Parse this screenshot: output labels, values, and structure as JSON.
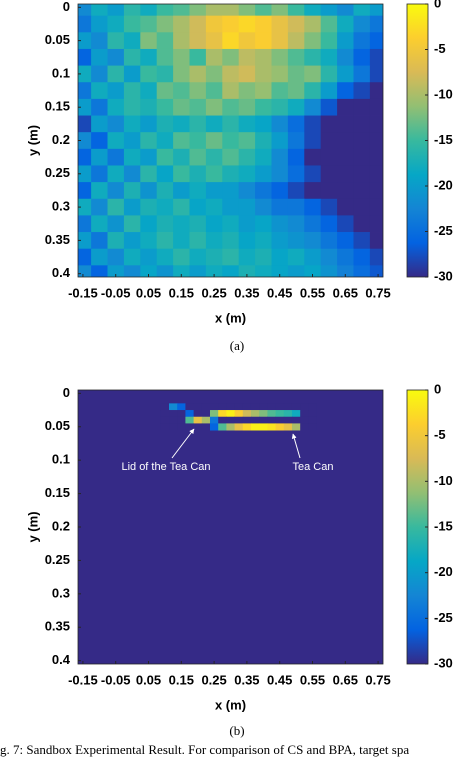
{
  "chart_data": [
    {
      "type": "heatmap",
      "caption": "(a)",
      "xlabel": "x (m)",
      "ylabel": "y (m)",
      "xlim": [
        -0.165,
        0.765
      ],
      "ylim": [
        -0.005,
        0.405
      ],
      "y_reversed": true,
      "xticks": [
        -0.15,
        -0.05,
        0.05,
        0.15,
        0.25,
        0.35,
        0.45,
        0.55,
        0.65,
        0.75
      ],
      "yticks": [
        0,
        0.05,
        0.1,
        0.15,
        0.2,
        0.25,
        0.3,
        0.35,
        0.4
      ],
      "clim": [
        -30,
        0
      ],
      "cticks": [
        0,
        -5,
        -10,
        -15,
        -20,
        -25,
        -30
      ],
      "colormap": [
        "#352a87",
        "#0363e1",
        "#1485d4",
        "#06a7c6",
        "#38b99e",
        "#92bf73",
        "#d9ba56",
        "#fcce2e",
        "#f9fb0e"
      ],
      "x": [
        -0.15,
        -0.1,
        -0.05,
        0,
        0.05,
        0.1,
        0.15,
        0.2,
        0.25,
        0.3,
        0.35,
        0.4,
        0.45,
        0.5,
        0.55,
        0.6,
        0.65,
        0.7,
        0.75
      ],
      "y": [
        0,
        0.025,
        0.05,
        0.075,
        0.1,
        0.125,
        0.15,
        0.175,
        0.2,
        0.225,
        0.25,
        0.275,
        0.3,
        0.325,
        0.35,
        0.375,
        0.4
      ],
      "values": [
        [
          -22,
          -18,
          -20,
          -16,
          -18,
          -15,
          -14,
          -12,
          -10,
          -10,
          -12,
          -14,
          -12,
          -15,
          -18,
          -20,
          -22,
          -18,
          -20
        ],
        [
          -24,
          -20,
          -18,
          -15,
          -14,
          -12,
          -10,
          -8,
          -5,
          -4,
          -3,
          -4,
          -6,
          -8,
          -10,
          -14,
          -18,
          -22,
          -24
        ],
        [
          -20,
          -22,
          -16,
          -18,
          -12,
          -14,
          -10,
          -8,
          -6,
          -3,
          -5,
          -4,
          -6,
          -9,
          -12,
          -15,
          -20,
          -24,
          -26
        ],
        [
          -26,
          -20,
          -22,
          -16,
          -18,
          -14,
          -12,
          -15,
          -10,
          -12,
          -9,
          -10,
          -12,
          -14,
          -16,
          -18,
          -22,
          -26,
          -28
        ],
        [
          -18,
          -22,
          -16,
          -20,
          -15,
          -16,
          -12,
          -10,
          -12,
          -9,
          -8,
          -10,
          -11,
          -13,
          -12,
          -16,
          -20,
          -24,
          -28
        ],
        [
          -24,
          -18,
          -20,
          -16,
          -18,
          -13,
          -14,
          -12,
          -14,
          -10,
          -12,
          -11,
          -14,
          -13,
          -16,
          -20,
          -26,
          -28,
          -30
        ],
        [
          -20,
          -24,
          -18,
          -16,
          -17,
          -15,
          -13,
          -14,
          -12,
          -14,
          -13,
          -15,
          -16,
          -18,
          -22,
          -27,
          -30,
          -30,
          -30
        ],
        [
          -28,
          -20,
          -22,
          -18,
          -20,
          -17,
          -18,
          -16,
          -18,
          -16,
          -18,
          -19,
          -22,
          -25,
          -28,
          -30,
          -30,
          -30,
          -30
        ],
        [
          -22,
          -26,
          -18,
          -20,
          -16,
          -18,
          -14,
          -15,
          -13,
          -15,
          -14,
          -17,
          -20,
          -24,
          -28,
          -30,
          -30,
          -30,
          -30
        ],
        [
          -26,
          -20,
          -24,
          -18,
          -20,
          -15,
          -17,
          -14,
          -16,
          -14,
          -16,
          -18,
          -22,
          -26,
          -30,
          -30,
          -30,
          -30,
          -30
        ],
        [
          -20,
          -24,
          -18,
          -22,
          -16,
          -19,
          -15,
          -17,
          -15,
          -17,
          -18,
          -20,
          -22,
          -25,
          -28,
          -30,
          -30,
          -30,
          -30
        ],
        [
          -26,
          -18,
          -22,
          -17,
          -21,
          -17,
          -20,
          -18,
          -20,
          -20,
          -22,
          -24,
          -26,
          -28,
          -30,
          -30,
          -30,
          -30,
          -30
        ],
        [
          -18,
          -22,
          -16,
          -20,
          -17,
          -18,
          -16,
          -19,
          -18,
          -20,
          -20,
          -22,
          -24,
          -24,
          -26,
          -28,
          -30,
          -30,
          -30
        ],
        [
          -24,
          -18,
          -21,
          -16,
          -19,
          -17,
          -18,
          -17,
          -19,
          -18,
          -20,
          -19,
          -21,
          -22,
          -24,
          -26,
          -28,
          -30,
          -30
        ],
        [
          -20,
          -24,
          -17,
          -20,
          -18,
          -16,
          -18,
          -16,
          -18,
          -17,
          -19,
          -18,
          -20,
          -21,
          -22,
          -24,
          -26,
          -28,
          -30
        ],
        [
          -26,
          -20,
          -22,
          -18,
          -20,
          -18,
          -16,
          -18,
          -17,
          -16,
          -18,
          -17,
          -19,
          -18,
          -20,
          -22,
          -24,
          -26,
          -28
        ],
        [
          -22,
          -26,
          -20,
          -22,
          -19,
          -21,
          -18,
          -20,
          -18,
          -19,
          -17,
          -18,
          -19,
          -20,
          -19,
          -21,
          -23,
          -25,
          -27
        ]
      ]
    },
    {
      "type": "heatmap",
      "caption": "(b)",
      "xlabel": "x (m)",
      "ylabel": "y (m)",
      "xlim": [
        -0.165,
        0.765
      ],
      "ylim": [
        -0.005,
        0.405
      ],
      "y_reversed": true,
      "xticks": [
        -0.15,
        -0.05,
        0.05,
        0.15,
        0.25,
        0.35,
        0.45,
        0.55,
        0.65,
        0.75
      ],
      "yticks": [
        0,
        0.05,
        0.1,
        0.15,
        0.2,
        0.25,
        0.3,
        0.35,
        0.4
      ],
      "clim": [
        -30,
        0
      ],
      "cticks": [
        0,
        -5,
        -10,
        -15,
        -20,
        -25,
        -30
      ],
      "colormap": [
        "#352a87",
        "#0363e1",
        "#1485d4",
        "#06a7c6",
        "#38b99e",
        "#92bf73",
        "#d9ba56",
        "#fcce2e",
        "#f9fb0e"
      ],
      "background": -30,
      "x": [
        0.1,
        0.125,
        0.15,
        0.175,
        0.2,
        0.225,
        0.25,
        0.275,
        0.3,
        0.325,
        0.35,
        0.375,
        0.4,
        0.425,
        0.45,
        0.475,
        0.5,
        0.525,
        0.55
      ],
      "y": [
        0.02,
        0.03,
        0.04,
        0.05
      ],
      "values": [
        [
          -30,
          -22,
          -26,
          -30,
          -30,
          -30,
          -30,
          -30,
          -30,
          -30,
          -30,
          -30,
          -30,
          -30,
          -30,
          -30,
          -30,
          -30,
          -30
        ],
        [
          -30,
          -30,
          -30,
          -26,
          -30,
          -30,
          -12,
          -3,
          -1,
          -4,
          -8,
          -10,
          -12,
          -14,
          -15,
          -16,
          -18,
          -30,
          -30
        ],
        [
          -30,
          -30,
          -30,
          -14,
          -6,
          -10,
          -24,
          -30,
          -30,
          -30,
          -30,
          -30,
          -30,
          -30,
          -30,
          -30,
          -30,
          -30,
          -30
        ],
        [
          -30,
          -30,
          -30,
          -30,
          -30,
          -30,
          -26,
          -14,
          -10,
          -6,
          -3,
          -1,
          -1,
          -2,
          -4,
          -6,
          -10,
          -30,
          -30
        ]
      ],
      "annotations": [
        "Lid of the Tea Can",
        "Tea Can"
      ]
    }
  ],
  "figure_caption": "g. 7: Sandbox Experimental Result. For comparison of CS and BPA, target spa"
}
